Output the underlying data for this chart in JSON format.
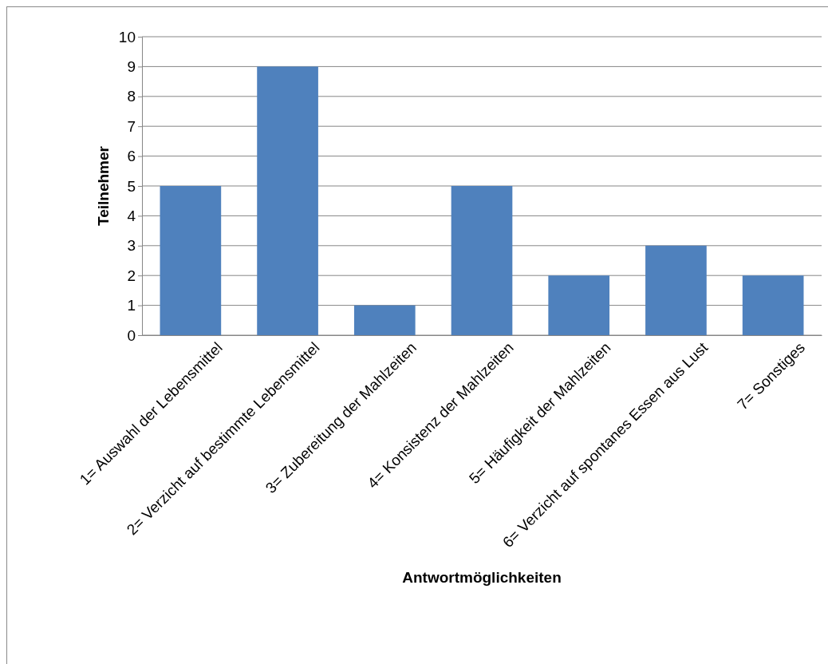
{
  "chart_data": {
    "type": "bar",
    "xlabel": "Antwortmöglichkeiten",
    "ylabel": "Teilnehmer",
    "categories": [
      "1= Auswahl der Lebensmittel",
      "2= Verzicht auf bestimmte Lebensmittel",
      "3= Zubereitung der Mahlzeiten",
      "4= Konsistenz der Mahlzeiten",
      "5= Häufigkeit der Mahlzeiten",
      "6= Verzicht auf spontanes Essen aus Lust",
      "7= Sonstiges"
    ],
    "values": [
      5,
      9,
      1,
      5,
      2,
      3,
      2
    ],
    "color": "#4f81bd",
    "ylim": [
      0,
      10
    ],
    "yticks": [
      0,
      1,
      2,
      3,
      4,
      5,
      6,
      7,
      8,
      9,
      10
    ],
    "grid": "y"
  }
}
